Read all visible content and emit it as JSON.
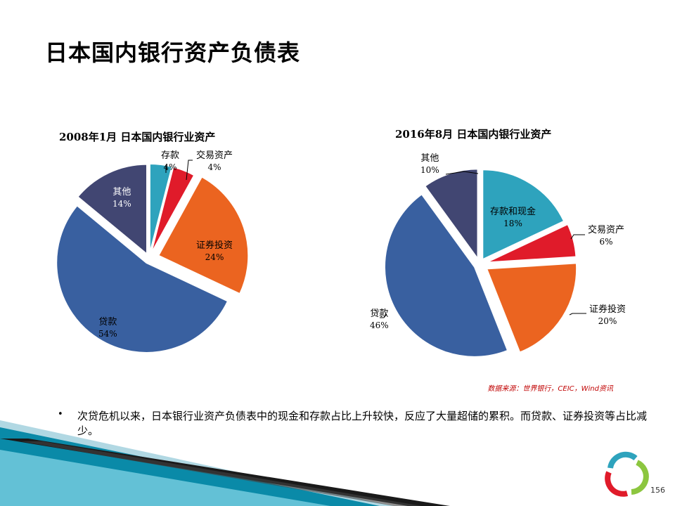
{
  "page_title": "日本国内银行资产负债表",
  "chart_data": [
    {
      "type": "pie",
      "title": "2008年1月 日本国内银行业资产",
      "slices": [
        {
          "name": "存款",
          "value": 4,
          "label": "4%",
          "color": "#2ea3bd"
        },
        {
          "name": "交易资产",
          "value": 4,
          "label": "4%",
          "color": "#e01b2a"
        },
        {
          "name": "证券投资",
          "value": 24,
          "label": "24%",
          "color": "#eb6420"
        },
        {
          "name": "贷款",
          "value": 54,
          "label": "54%",
          "color": "#3960a0"
        },
        {
          "name": "其他",
          "value": 14,
          "label": "14%",
          "color": "#414672"
        }
      ]
    },
    {
      "type": "pie",
      "title": "2016年8月 日本国内银行业资产",
      "slices": [
        {
          "name": "存款和现金",
          "value": 18,
          "label": "18%",
          "color": "#2ea3bd"
        },
        {
          "name": "交易资产",
          "value": 6,
          "label": "6%",
          "color": "#e01b2a"
        },
        {
          "name": "证券投资",
          "value": 20,
          "label": "20%",
          "color": "#eb6420"
        },
        {
          "name": "贷款",
          "value": 46,
          "label": "46%",
          "color": "#3960a0"
        },
        {
          "name": "其他",
          "value": 10,
          "label": "10%",
          "color": "#414672"
        }
      ]
    }
  ],
  "source_note": "数据来源：世界银行，CEIC，Wind资讯",
  "bullet_mark": "•",
  "bullet_text": "次贷危机以来，日本银行业资产负债表中的现金和存款占比上升较快，反应了大量超储的累积。而贷款、证券投资等占比减少。",
  "page_number": "156"
}
